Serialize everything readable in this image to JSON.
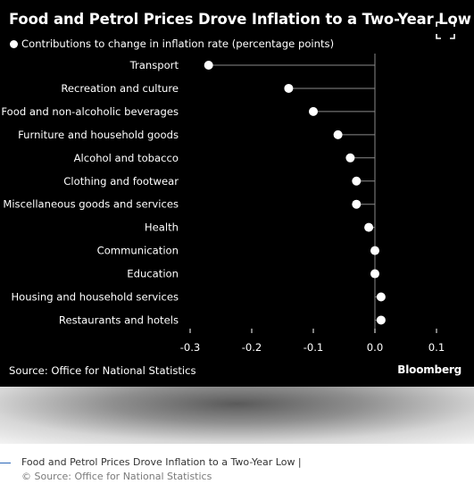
{
  "header": {
    "title": "Food and Petrol Prices Drove Inflation to a Two-Year Low",
    "expand_icon": "expand-corners-icon"
  },
  "legend": {
    "label": "Contributions to change in inflation rate (percentage points)"
  },
  "footer": {
    "source": "Source: Office for National Statistics",
    "brand": "Bloomberg"
  },
  "caption": {
    "title": "Food and Petrol Prices Drove Inflation to a Two-Year Low |",
    "source": "© Source: Office for National Statistics"
  },
  "colors": {
    "background": "#000000",
    "marker": "#ffffff",
    "stem": "#8a8a8a",
    "text": "#ffffff",
    "caption_rule": "#2a66b8"
  },
  "chart_data": {
    "type": "dot",
    "title": "Food and Petrol Prices Drove Inflation to a Two-Year Low",
    "legend": "Contributions to change in inflation rate (percentage points)",
    "categories": [
      "Transport",
      "Recreation and culture",
      "Food and non-alcoholic beverages",
      "Furniture and household goods",
      "Alcohol and tobacco",
      "Clothing and footwear",
      "Miscellaneous goods and services",
      "Health",
      "Communication",
      "Education",
      "Housing and household services",
      "Restaurants and hotels"
    ],
    "values": [
      -0.27,
      -0.14,
      -0.1,
      -0.06,
      -0.04,
      -0.03,
      -0.03,
      -0.01,
      0.0,
      0.0,
      0.01,
      0.01
    ],
    "xlim": [
      -0.3,
      0.1
    ],
    "xticks": [
      -0.3,
      -0.2,
      -0.1,
      0.0,
      0.1
    ],
    "xtick_labels": [
      "-0.3",
      "-0.2",
      "-0.1",
      "0.0",
      "0.1"
    ],
    "grid": false,
    "legend_position": "top-left"
  }
}
